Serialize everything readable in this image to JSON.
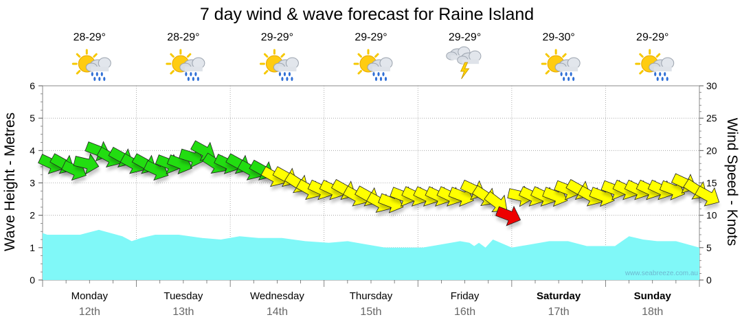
{
  "title": "7 day wind & wave forecast for Raine Island",
  "watermark": "www.seabreeze.com.au",
  "days": [
    {
      "name": "Monday",
      "date": "12th",
      "temp": "28-29°",
      "weather": "sun-cloud-rain-icon",
      "bold": false
    },
    {
      "name": "Tuesday",
      "date": "13th",
      "temp": "28-29°",
      "weather": "sun-cloud-rain-icon",
      "bold": false
    },
    {
      "name": "Wednesday",
      "date": "14th",
      "temp": "29-29°",
      "weather": "sun-cloud-rain-icon",
      "bold": false
    },
    {
      "name": "Thursday",
      "date": "15th",
      "temp": "29-29°",
      "weather": "sun-cloud-rain-icon",
      "bold": false
    },
    {
      "name": "Friday",
      "date": "16th",
      "temp": "29-29°",
      "weather": "storm-cloud-lightning-icon",
      "bold": false
    },
    {
      "name": "Saturday",
      "date": "17th",
      "temp": "29-30°",
      "weather": "sun-cloud-rain-icon",
      "bold": true
    },
    {
      "name": "Sunday",
      "date": "18th",
      "temp": "29-29°",
      "weather": "sun-cloud-rain-icon",
      "bold": true
    }
  ],
  "colors": {
    "wave_fill": "#80f8f8",
    "wind_low": "#22dd11",
    "wind_mid": "#ffff00",
    "wind_high": "#ee0000",
    "grid": "#999999"
  },
  "chart_data": {
    "type": "area",
    "title": "7 day wind & wave forecast for Raine Island",
    "ylabel": "Wave Height - Metres",
    "ylabel_right": "Wind Speed - Knots",
    "ylim": [
      0,
      6
    ],
    "ylim_right": [
      0,
      30
    ],
    "yticks": [
      "0",
      "1",
      "2",
      "3",
      "4",
      "5",
      "6"
    ],
    "yticks_right": [
      "0",
      "5",
      "10",
      "15",
      "20",
      "25",
      "30"
    ],
    "categories": [
      "Monday 12th",
      "Tuesday 13th",
      "Wednesday 14th",
      "Thursday 15th",
      "Friday 16th",
      "Saturday 17th",
      "Sunday 18th"
    ],
    "series": [
      {
        "axis": "left",
        "x": [
          0,
          0.05,
          0.2,
          0.4,
          0.6,
          0.85,
          0.95,
          1.05,
          1.2,
          1.45,
          1.7,
          1.9,
          2.1,
          2.3,
          2.55,
          2.8,
          3.05,
          3.25,
          3.45,
          3.65,
          3.85,
          4.05,
          4.25,
          4.45,
          4.55,
          4.6,
          4.65,
          4.72,
          4.8,
          5.0,
          5.2,
          5.4,
          5.6,
          5.8,
          6.0,
          6.1,
          6.25,
          6.4,
          6.55,
          6.75,
          7.0
        ],
        "values": [
          1.45,
          1.4,
          1.4,
          1.4,
          1.55,
          1.35,
          1.2,
          1.3,
          1.4,
          1.4,
          1.3,
          1.25,
          1.35,
          1.3,
          1.3,
          1.2,
          1.15,
          1.2,
          1.1,
          1.0,
          1.0,
          1.0,
          1.1,
          1.2,
          1.15,
          1.05,
          1.15,
          1.0,
          1.25,
          1.0,
          1.1,
          1.2,
          1.2,
          1.05,
          1.05,
          1.05,
          1.35,
          1.25,
          1.2,
          1.2,
          1.0
        ]
      },
      {
        "axis": "right",
        "x": [
          0,
          0.125,
          0.25,
          0.375,
          0.5,
          0.625,
          0.75,
          0.875,
          1,
          1.125,
          1.25,
          1.375,
          1.5,
          1.625,
          1.75,
          1.875,
          2,
          2.125,
          2.25,
          2.375,
          2.5,
          2.625,
          2.75,
          2.875,
          3,
          3.125,
          3.25,
          3.375,
          3.5,
          3.625,
          3.75,
          3.875,
          4,
          4.125,
          4.25,
          4.375,
          4.5,
          4.625,
          4.75,
          4.875,
          5,
          5.125,
          5.25,
          5.375,
          5.5,
          5.625,
          5.75,
          5.875,
          6,
          6.125,
          6.25,
          6.375,
          6.5,
          6.625,
          6.75,
          6.875,
          7
        ],
        "values": [
          18,
          18,
          17,
          18,
          20,
          19,
          19,
          18,
          18,
          17,
          18,
          18,
          19,
          20,
          18,
          18,
          18,
          17,
          17,
          16,
          16,
          15,
          14,
          14,
          14,
          14,
          13,
          13,
          12,
          12,
          13,
          13,
          13,
          13,
          13,
          13,
          14,
          13,
          12,
          10,
          13,
          13,
          13,
          13,
          14,
          14,
          13,
          13,
          14,
          14,
          14,
          14,
          14,
          14,
          15,
          14,
          13
        ]
      }
    ]
  }
}
